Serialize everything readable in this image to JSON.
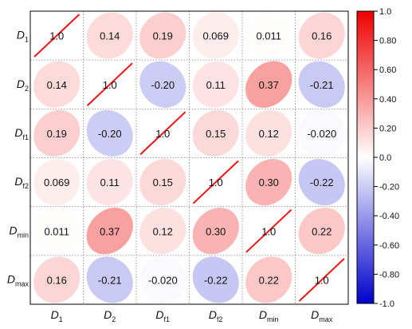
{
  "chart_data": {
    "type": "heatmap",
    "subtype": "correlation-ellipse-matrix",
    "variables": [
      {
        "base": "D",
        "sub": "1"
      },
      {
        "base": "D",
        "sub": "2"
      },
      {
        "base": "D",
        "sub": "f1"
      },
      {
        "base": "D",
        "sub": "f2"
      },
      {
        "base": "D",
        "sub": "min"
      },
      {
        "base": "D",
        "sub": "max"
      }
    ],
    "matrix": [
      [
        1.0,
        0.14,
        0.19,
        0.069,
        0.011,
        0.16
      ],
      [
        0.14,
        1.0,
        -0.2,
        0.11,
        0.37,
        -0.21
      ],
      [
        0.19,
        -0.2,
        1.0,
        0.15,
        0.12,
        -0.02
      ],
      [
        0.069,
        0.11,
        0.15,
        1.0,
        0.3,
        -0.22
      ],
      [
        0.011,
        0.37,
        0.12,
        0.3,
        1.0,
        0.22
      ],
      [
        0.16,
        -0.21,
        -0.02,
        -0.22,
        0.22,
        1.0
      ]
    ],
    "labels": [
      [
        "1.0",
        "0.14",
        "0.19",
        "0.069",
        "0.011",
        "0.16"
      ],
      [
        "0.14",
        "1.0",
        "-0.20",
        "0.11",
        "0.37",
        "-0.21"
      ],
      [
        "0.19",
        "-0.20",
        "1.0",
        "0.15",
        "0.12",
        "-0.020"
      ],
      [
        "0.069",
        "0.11",
        "0.15",
        "1.0",
        "0.30",
        "-0.22"
      ],
      [
        "0.011",
        "0.37",
        "0.12",
        "0.30",
        "1.0",
        "0.22"
      ],
      [
        "0.16",
        "-0.21",
        "-0.020",
        "-0.22",
        "0.22",
        "1.0"
      ]
    ],
    "colorbar": {
      "range": [
        -1.0,
        1.0
      ],
      "ticks": [
        "1.0",
        "0.80",
        "0.60",
        "0.40",
        "0.20",
        "0.0",
        "-0.20",
        "-0.40",
        "-0.60",
        "-0.80",
        "-1.0"
      ],
      "colors": {
        "negative": "#0000cc",
        "zero": "#ffffff",
        "positive": "#ee0000"
      }
    },
    "diagonal_line_color": "#ee1111",
    "grid": true
  }
}
